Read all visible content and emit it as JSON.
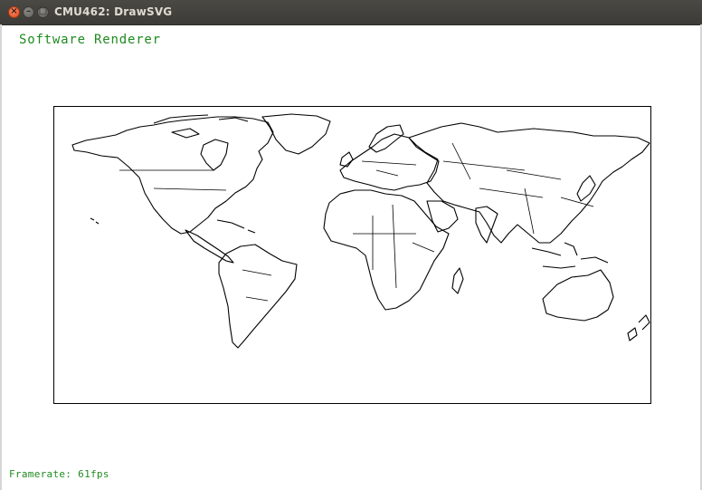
{
  "window": {
    "title": "CMU462: DrawSVG",
    "close_symbol": "×",
    "minimize_symbol": "–",
    "maximize_symbol": "□"
  },
  "overlay": {
    "renderer_label": "Software Renderer",
    "framerate_text": "Framerate: 61fps"
  },
  "icons": {
    "close": "close-icon",
    "minimize": "minimize-icon",
    "maximize": "maximize-icon"
  },
  "colors": {
    "overlay_text": "#1f8a1f",
    "titlebar": "#3c3b37",
    "close_button": "#df4a1b"
  }
}
